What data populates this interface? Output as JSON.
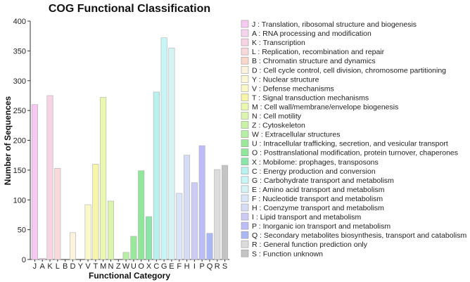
{
  "chart_data": {
    "type": "bar",
    "title": "COG Functional Classification",
    "xlabel": "Functional Category",
    "ylabel": "Number of Sequences",
    "ylim": [
      0,
      400
    ],
    "yticks": [
      0,
      50,
      100,
      150,
      200,
      250,
      300,
      350,
      400
    ],
    "grid": false,
    "legend_position": "right",
    "categories": [
      "J",
      "A",
      "K",
      "L",
      "B",
      "D",
      "Y",
      "V",
      "T",
      "M",
      "N",
      "Z",
      "W",
      "U",
      "O",
      "X",
      "C",
      "G",
      "E",
      "F",
      "H",
      "I",
      "P",
      "Q",
      "R",
      "S"
    ],
    "values": [
      260,
      2,
      275,
      153,
      0,
      45,
      0,
      92,
      160,
      272,
      98,
      0,
      12,
      39,
      149,
      72,
      281,
      372,
      355,
      111,
      175,
      129,
      191,
      44,
      151,
      158
    ],
    "colors": [
      "#f7c8f2",
      "#f6d3ef",
      "#f8d3e3",
      "#f8d8d8",
      "#f8d6c8",
      "#fbf3dd",
      "#fbf7d6",
      "#fbf8c8",
      "#f7f6a8",
      "#eaf7ae",
      "#dcf5ae",
      "#c8f2a6",
      "#b5efa3",
      "#9ae89a",
      "#8fe89a",
      "#8ae6a8",
      "#b8f2ee",
      "#c8f5f5",
      "#d5f3f4",
      "#dae6f8",
      "#d6dcf6",
      "#cbcbf6",
      "#bcbdf8",
      "#a9b8f5",
      "#dcdcdc",
      "#c4c4c4"
    ],
    "legend": [
      "J : Translation, ribosomal structure and biogenesis",
      "A : RNA processing and modification",
      "K : Transcription",
      "L : Replication, recombination and repair",
      "B : Chromatin structure and dynamics",
      "D : Cell cycle control, cell division, chromosome partitioning",
      "Y : Nuclear structure",
      "V : Defense mechanisms",
      "T : Signal transduction mechanisms",
      "M : Cell wall/membrane/envelope biogenesis",
      "N : Cell motility",
      "Z : Cytoskeleton",
      "W : Extracellular structures",
      "U : Intracellular trafficking, secretion, and vesicular transport",
      "O : Posttranslational modification, protein turnover, chaperones",
      "X : Mobilome: prophages, transposons",
      "C : Energy production and conversion",
      "G : Carbohydrate transport and metabolism",
      "E : Amino acid transport and metabolism",
      "F : Nucleotide transport and metabolism",
      "H : Coenzyme transport and metabolism",
      "I : Lipid transport and metabolism",
      "P : Inorganic ion transport and metabolism",
      "Q : Secondary metabolites biosynthesis, transport and catabolism",
      "R : General function prediction only",
      "S : Function unknown"
    ]
  }
}
